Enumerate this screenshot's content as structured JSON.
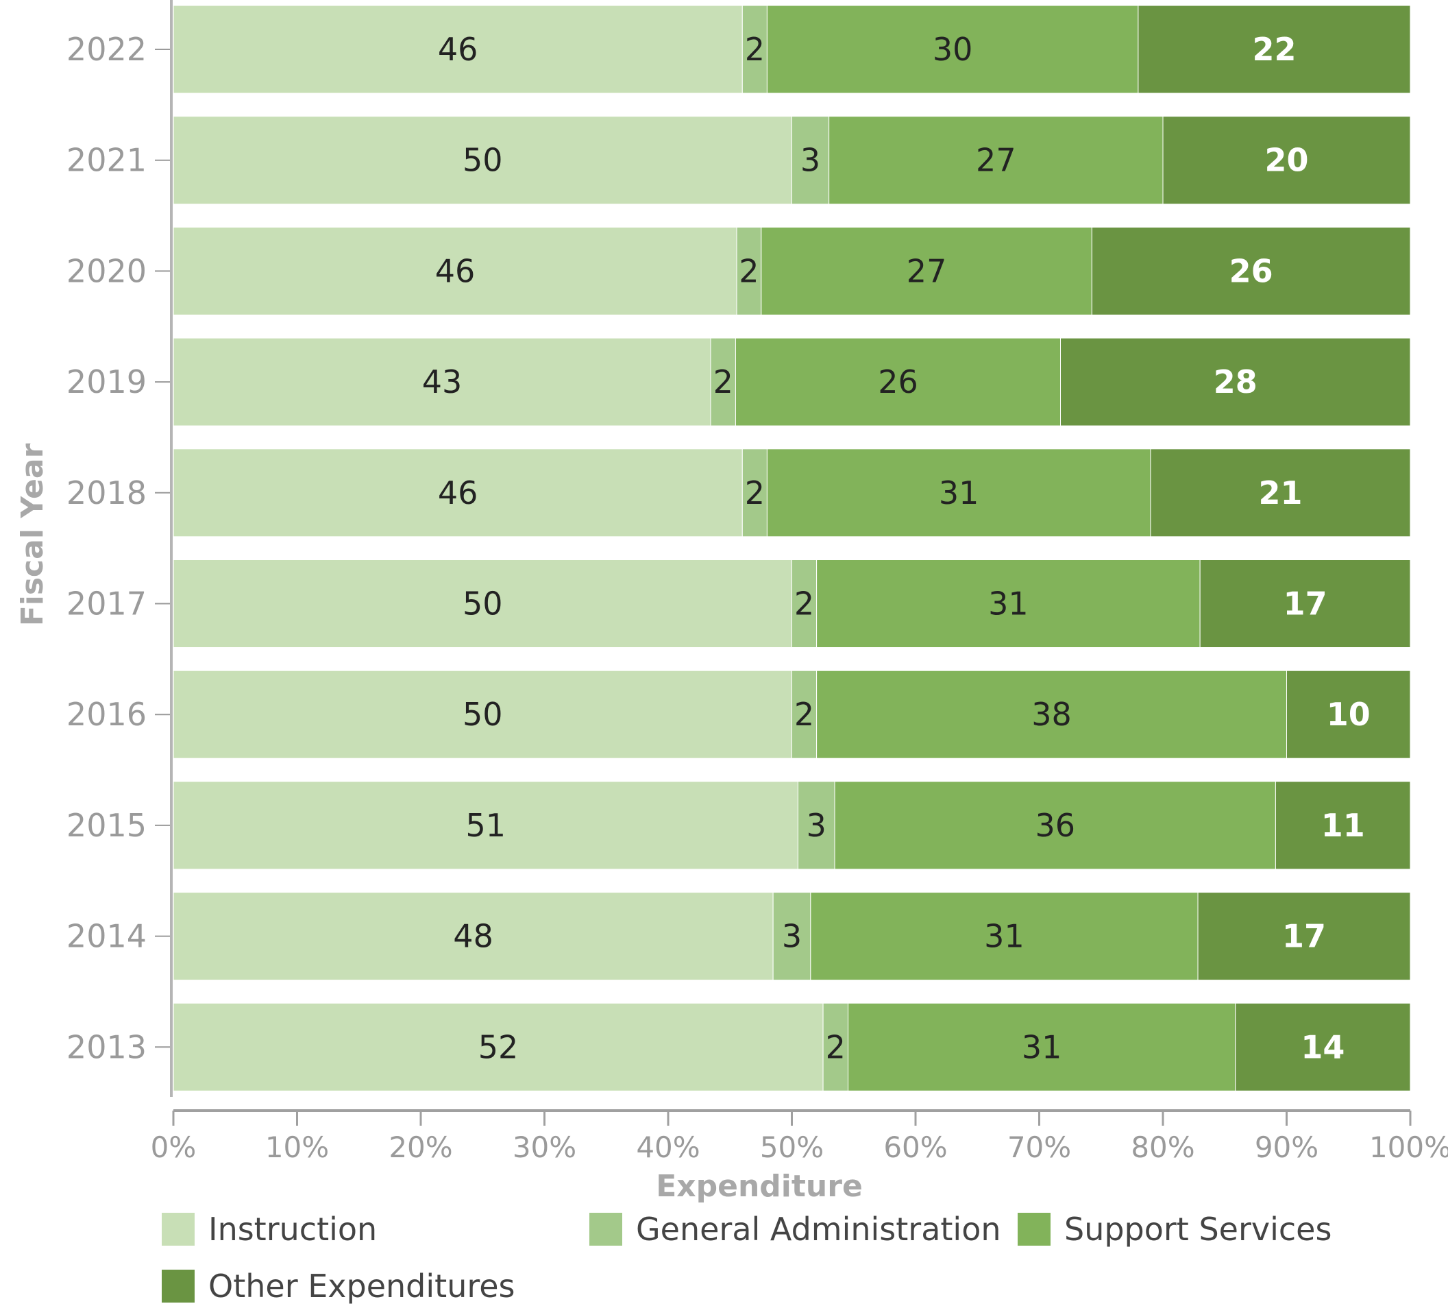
{
  "chart_data": {
    "type": "bar",
    "orientation": "horizontal",
    "stacked": "percent",
    "categories": [
      "2022",
      "2021",
      "2020",
      "2019",
      "2018",
      "2017",
      "2016",
      "2015",
      "2014",
      "2013"
    ],
    "series": [
      {
        "name": "Instruction",
        "color": "#c8dfb6",
        "label_color": "#222222",
        "values": [
          46,
          50,
          46,
          43,
          46,
          50,
          50,
          51,
          48,
          52
        ]
      },
      {
        "name": "General Administration",
        "color": "#a3c98a",
        "label_color": "#222222",
        "values": [
          2,
          3,
          2,
          2,
          2,
          2,
          2,
          3,
          3,
          2
        ]
      },
      {
        "name": "Support Services",
        "color": "#82b35a",
        "label_color": "#222222",
        "values": [
          30,
          27,
          27,
          26,
          31,
          31,
          38,
          36,
          31,
          31
        ]
      },
      {
        "name": "Other Expenditures",
        "color": "#6a9442",
        "label_color": "#ffffff",
        "values": [
          22,
          20,
          26,
          28,
          21,
          17,
          10,
          11,
          17,
          14
        ]
      }
    ],
    "xlabel": "Expenditure",
    "ylabel": "Fiscal Year",
    "xlim": [
      0,
      100
    ],
    "xticks": [
      "0%",
      "10%",
      "20%",
      "30%",
      "40%",
      "50%",
      "60%",
      "70%",
      "80%",
      "90%",
      "100%"
    ],
    "grid": false,
    "legend_position": "bottom-left"
  }
}
